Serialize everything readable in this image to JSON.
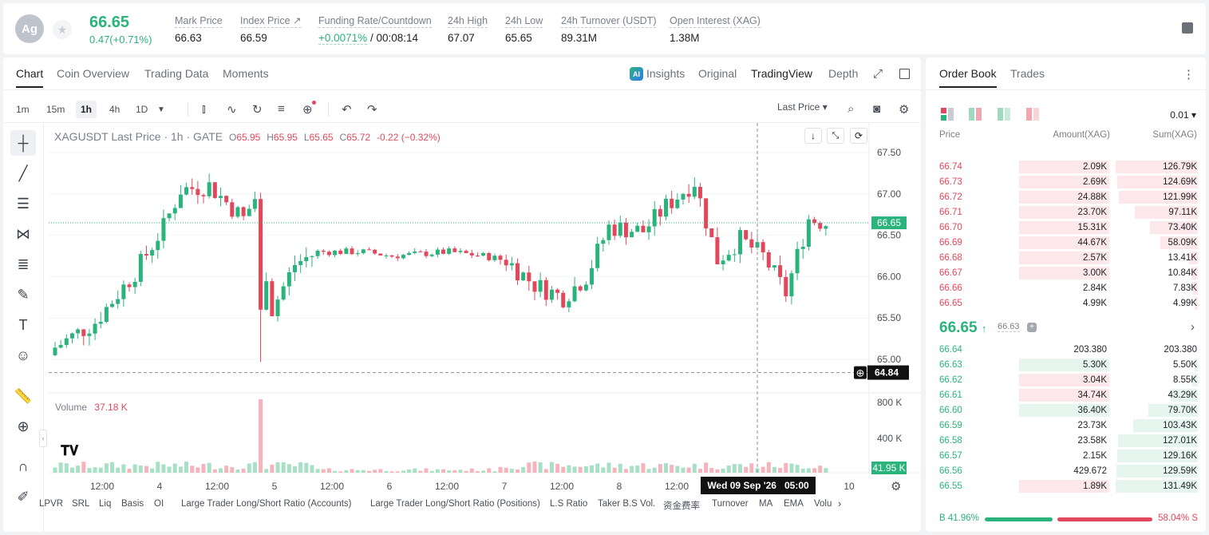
{
  "header": {
    "avatar": "Ag",
    "last_price": "66.65",
    "change": "0.47(+0.71%)",
    "stats": [
      {
        "label": "Mark Price",
        "value": "66.63"
      },
      {
        "label": "Index Price ↗",
        "value": "66.59"
      },
      {
        "label": "Funding Rate/Countdown",
        "value": "+0.0071%",
        "value2": " / 00:08:14"
      },
      {
        "label": "24h High",
        "value": "67.07"
      },
      {
        "label": "24h Low",
        "value": "65.65"
      },
      {
        "label": "24h Turnover (USDT)",
        "value": "89.31M"
      },
      {
        "label": "Open Interest (XAG)",
        "value": "1.38M"
      }
    ]
  },
  "chart_tabs": [
    "Chart",
    "Coin Overview",
    "Trading Data",
    "Moments"
  ],
  "chart_modes": {
    "insights": "Insights",
    "original": "Original",
    "tradingview": "TradingView",
    "depth": "Depth"
  },
  "intervals": [
    "1m",
    "15m",
    "1h",
    "4h",
    "1D"
  ],
  "price_type": "Last Price ▾",
  "legend": {
    "symbol": "XAGUSDT Last Price · 1h · GATE",
    "o": "65.95",
    "h": "65.95",
    "l": "65.65",
    "c": "65.72",
    "chg": "-0.22 (−0.32%)"
  },
  "volume_legend": {
    "label": "Volume",
    "value": "37.18 K"
  },
  "price_axis": [
    "67.50",
    "67.00",
    "66.50",
    "66.00",
    "65.50",
    "65.00"
  ],
  "current_price_tag": "66.65",
  "cursor_price_tag": "64.84",
  "volume_axis": [
    "800 K",
    "400 K"
  ],
  "volume_tag": "41.95 K",
  "time_axis": [
    "12:00",
    "4",
    "12:00",
    "5",
    "12:00",
    "6",
    "12:00",
    "7",
    "12:00",
    "8",
    "12:00",
    "10"
  ],
  "cursor_time": "Wed 09 Sep '26   05:00",
  "indicators": [
    "LPVR",
    "SRL",
    "Liq",
    "Basis",
    "OI",
    "Large Trader Long/Short Ratio (Accounts)",
    "Large Trader Long/Short Ratio (Positions)",
    "L.S Ratio",
    "Taker B.S Vol.",
    "资金费率",
    "Turnover",
    "MA",
    "EMA",
    "Volu"
  ],
  "orderbook": {
    "tabs": [
      "Order Book",
      "Trades"
    ],
    "precision": "0.01 ▾",
    "headers": {
      "price": "Price",
      "amount": "Amount(XAG)",
      "sum": "Sum(XAG)"
    },
    "asks": [
      {
        "price": "66.74",
        "amount": "2.09K",
        "sum": "126.79K",
        "abar": 0.98,
        "sbar": 0.98
      },
      {
        "price": "66.73",
        "amount": "2.69K",
        "sum": "124.69K",
        "abar": 0.98,
        "sbar": 0.96
      },
      {
        "price": "66.72",
        "amount": "24.88K",
        "sum": "121.99K",
        "abar": 0.98,
        "sbar": 0.94
      },
      {
        "price": "66.71",
        "amount": "23.70K",
        "sum": "97.11K",
        "abar": 0.98,
        "sbar": 0.75
      },
      {
        "price": "66.70",
        "amount": "15.31K",
        "sum": "73.40K",
        "abar": 0.98,
        "sbar": 0.57
      },
      {
        "price": "66.69",
        "amount": "44.67K",
        "sum": "58.09K",
        "abar": 0.98,
        "sbar": 0.45
      },
      {
        "price": "66.68",
        "amount": "2.57K",
        "sum": "13.41K",
        "abar": 0.98,
        "sbar": 0.1
      },
      {
        "price": "66.67",
        "amount": "3.00K",
        "sum": "10.84K",
        "abar": 0.98,
        "sbar": 0.08
      },
      {
        "price": "66.66",
        "amount": "2.84K",
        "sum": "7.83K",
        "abar": 0,
        "sbar": 0.06
      },
      {
        "price": "66.65",
        "amount": "4.99K",
        "sum": "4.99K",
        "abar": 0,
        "sbar": 0.04
      }
    ],
    "mid_price": "66.65",
    "mid_mark": "66.63",
    "bids": [
      {
        "price": "66.64",
        "amount": "203.380",
        "sum": "203.380",
        "abar": 0,
        "sbar": 0
      },
      {
        "price": "66.63",
        "amount": "5.30K",
        "sum": "5.50K",
        "abar": 0.98,
        "sbar": 0.04
      },
      {
        "price": "66.62",
        "amount": "3.04K",
        "sum": "8.55K",
        "abar": 0.98,
        "sbar": 0.07
      },
      {
        "price": "66.61",
        "amount": "34.74K",
        "sum": "43.29K",
        "abar": 0.98,
        "sbar": 0.32
      },
      {
        "price": "66.60",
        "amount": "36.40K",
        "sum": "79.70K",
        "abar": 0.98,
        "sbar": 0.59
      },
      {
        "price": "66.59",
        "amount": "23.73K",
        "sum": "103.43K",
        "abar": 0,
        "sbar": 0.77
      },
      {
        "price": "66.58",
        "amount": "23.58K",
        "sum": "127.01K",
        "abar": 0,
        "sbar": 0.95
      },
      {
        "price": "66.57",
        "amount": "2.15K",
        "sum": "129.16K",
        "abar": 0,
        "sbar": 0.96
      },
      {
        "price": "66.56",
        "amount": "429.672",
        "sum": "129.59K",
        "abar": 0,
        "sbar": 0.97
      },
      {
        "price": "66.55",
        "amount": "1.89K",
        "sum": "131.49K",
        "abar": 0.98,
        "sbar": 0.98
      }
    ],
    "ratio": {
      "buy": "B 41.96%",
      "sell": "58.04% S",
      "buy_frac": 0.4196
    }
  }
}
